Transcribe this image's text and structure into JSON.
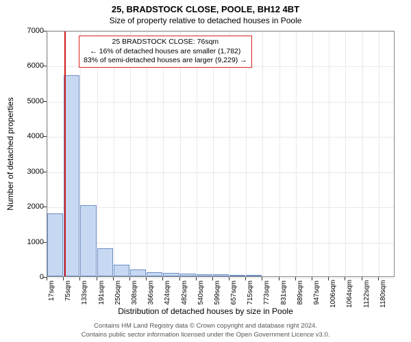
{
  "title": "25, BRADSTOCK CLOSE, POOLE, BH12 4BT",
  "subtitle": "Size of property relative to detached houses in Poole",
  "y_axis_label": "Number of detached properties",
  "x_axis_label": "Distribution of detached houses by size in Poole",
  "footer_line1": "Contains HM Land Registry data © Crown copyright and database right 2024.",
  "footer_line2": "Contains public sector information licensed under the Open Government Licence v3.0.",
  "annotation": {
    "line1": "25 BRADSTOCK CLOSE: 76sqm",
    "line2": "← 16% of detached houses are smaller (1,782)",
    "line3": "83% of semi-detached houses are larger (9,229) →"
  },
  "chart": {
    "type": "histogram",
    "ylim": [
      0,
      7000
    ],
    "ytick_step": 1000,
    "yticks": [
      0,
      1000,
      2000,
      3000,
      4000,
      5000,
      6000,
      7000
    ],
    "x_categories": [
      "17sqm",
      "75sqm",
      "133sqm",
      "191sqm",
      "250sqm",
      "308sqm",
      "366sqm",
      "424sqm",
      "482sqm",
      "540sqm",
      "599sqm",
      "657sqm",
      "715sqm",
      "773sqm",
      "831sqm",
      "889sqm",
      "947sqm",
      "1006sqm",
      "1064sqm",
      "1122sqm",
      "1180sqm"
    ],
    "values": [
      1780,
      5720,
      2020,
      800,
      340,
      190,
      120,
      90,
      70,
      60,
      50,
      40,
      35,
      0,
      0,
      0,
      0,
      0,
      0,
      0,
      0
    ],
    "bar_color": "#c7d9f2",
    "bar_border_color": "#6a8cc4",
    "grid_color": "#e8e8e8",
    "background_color": "#ffffff",
    "marker_color": "#d62020",
    "marker_value": 76,
    "title_fontsize": 13,
    "subtitle_fontsize": 12,
    "label_fontsize": 12,
    "tick_fontsize": 11,
    "annotation_fontsize": 10.5,
    "footer_fontsize": 9.5
  }
}
